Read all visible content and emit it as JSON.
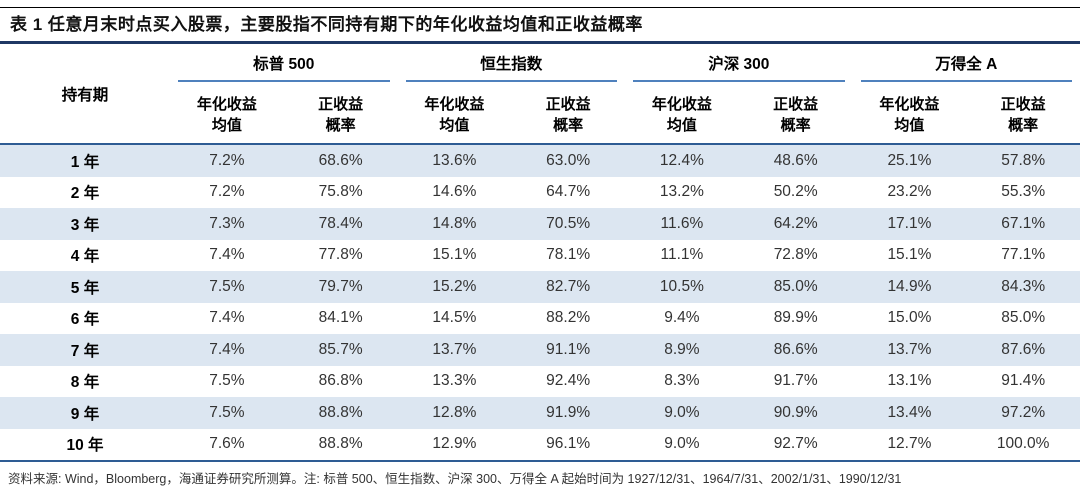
{
  "title": "表 1 任意月末时点买入股票，主要股指不同持有期下的年化收益均值和正收益概率",
  "table": {
    "period_header": "持有期",
    "groups": [
      "标普 500",
      "恒生指数",
      "沪深 300",
      "万得全 A"
    ],
    "subcols": {
      "mean": [
        "年化收益",
        "均值"
      ],
      "prob": [
        "正收益",
        "概率"
      ]
    },
    "rows": [
      {
        "period": "1 年",
        "values": [
          "7.2%",
          "68.6%",
          "13.6%",
          "63.0%",
          "12.4%",
          "48.6%",
          "25.1%",
          "57.8%"
        ]
      },
      {
        "period": "2 年",
        "values": [
          "7.2%",
          "75.8%",
          "14.6%",
          "64.7%",
          "13.2%",
          "50.2%",
          "23.2%",
          "55.3%"
        ]
      },
      {
        "period": "3 年",
        "values": [
          "7.3%",
          "78.4%",
          "14.8%",
          "70.5%",
          "11.6%",
          "64.2%",
          "17.1%",
          "67.1%"
        ]
      },
      {
        "period": "4 年",
        "values": [
          "7.4%",
          "77.8%",
          "15.1%",
          "78.1%",
          "11.1%",
          "72.8%",
          "15.1%",
          "77.1%"
        ]
      },
      {
        "period": "5 年",
        "values": [
          "7.5%",
          "79.7%",
          "15.2%",
          "82.7%",
          "10.5%",
          "85.0%",
          "14.9%",
          "84.3%"
        ]
      },
      {
        "period": "6 年",
        "values": [
          "7.4%",
          "84.1%",
          "14.5%",
          "88.2%",
          "9.4%",
          "89.9%",
          "15.0%",
          "85.0%"
        ]
      },
      {
        "period": "7 年",
        "values": [
          "7.4%",
          "85.7%",
          "13.7%",
          "91.1%",
          "8.9%",
          "86.6%",
          "13.7%",
          "87.6%"
        ]
      },
      {
        "period": "8 年",
        "values": [
          "7.5%",
          "86.8%",
          "13.3%",
          "92.4%",
          "8.3%",
          "91.7%",
          "13.1%",
          "91.4%"
        ]
      },
      {
        "period": "9 年",
        "values": [
          "7.5%",
          "88.8%",
          "12.8%",
          "91.9%",
          "9.0%",
          "90.9%",
          "13.4%",
          "97.2%"
        ]
      },
      {
        "period": "10 年",
        "values": [
          "7.6%",
          "88.8%",
          "12.9%",
          "96.1%",
          "9.0%",
          "92.7%",
          "12.7%",
          "100.0%"
        ]
      }
    ]
  },
  "footer": "资料来源: Wind，Bloomberg，海通证券研究所测算。注: 标普 500、恒生指数、沪深 300、万得全 A 起始时间为 1927/12/31、1964/7/31、2002/1/31、1990/12/31",
  "colors": {
    "stripe": "#dce6f1",
    "group_underline": "#4f81bd",
    "header_rule": "#2e5c94",
    "title_rule": "#1f3864",
    "top_rule": "#000000"
  }
}
